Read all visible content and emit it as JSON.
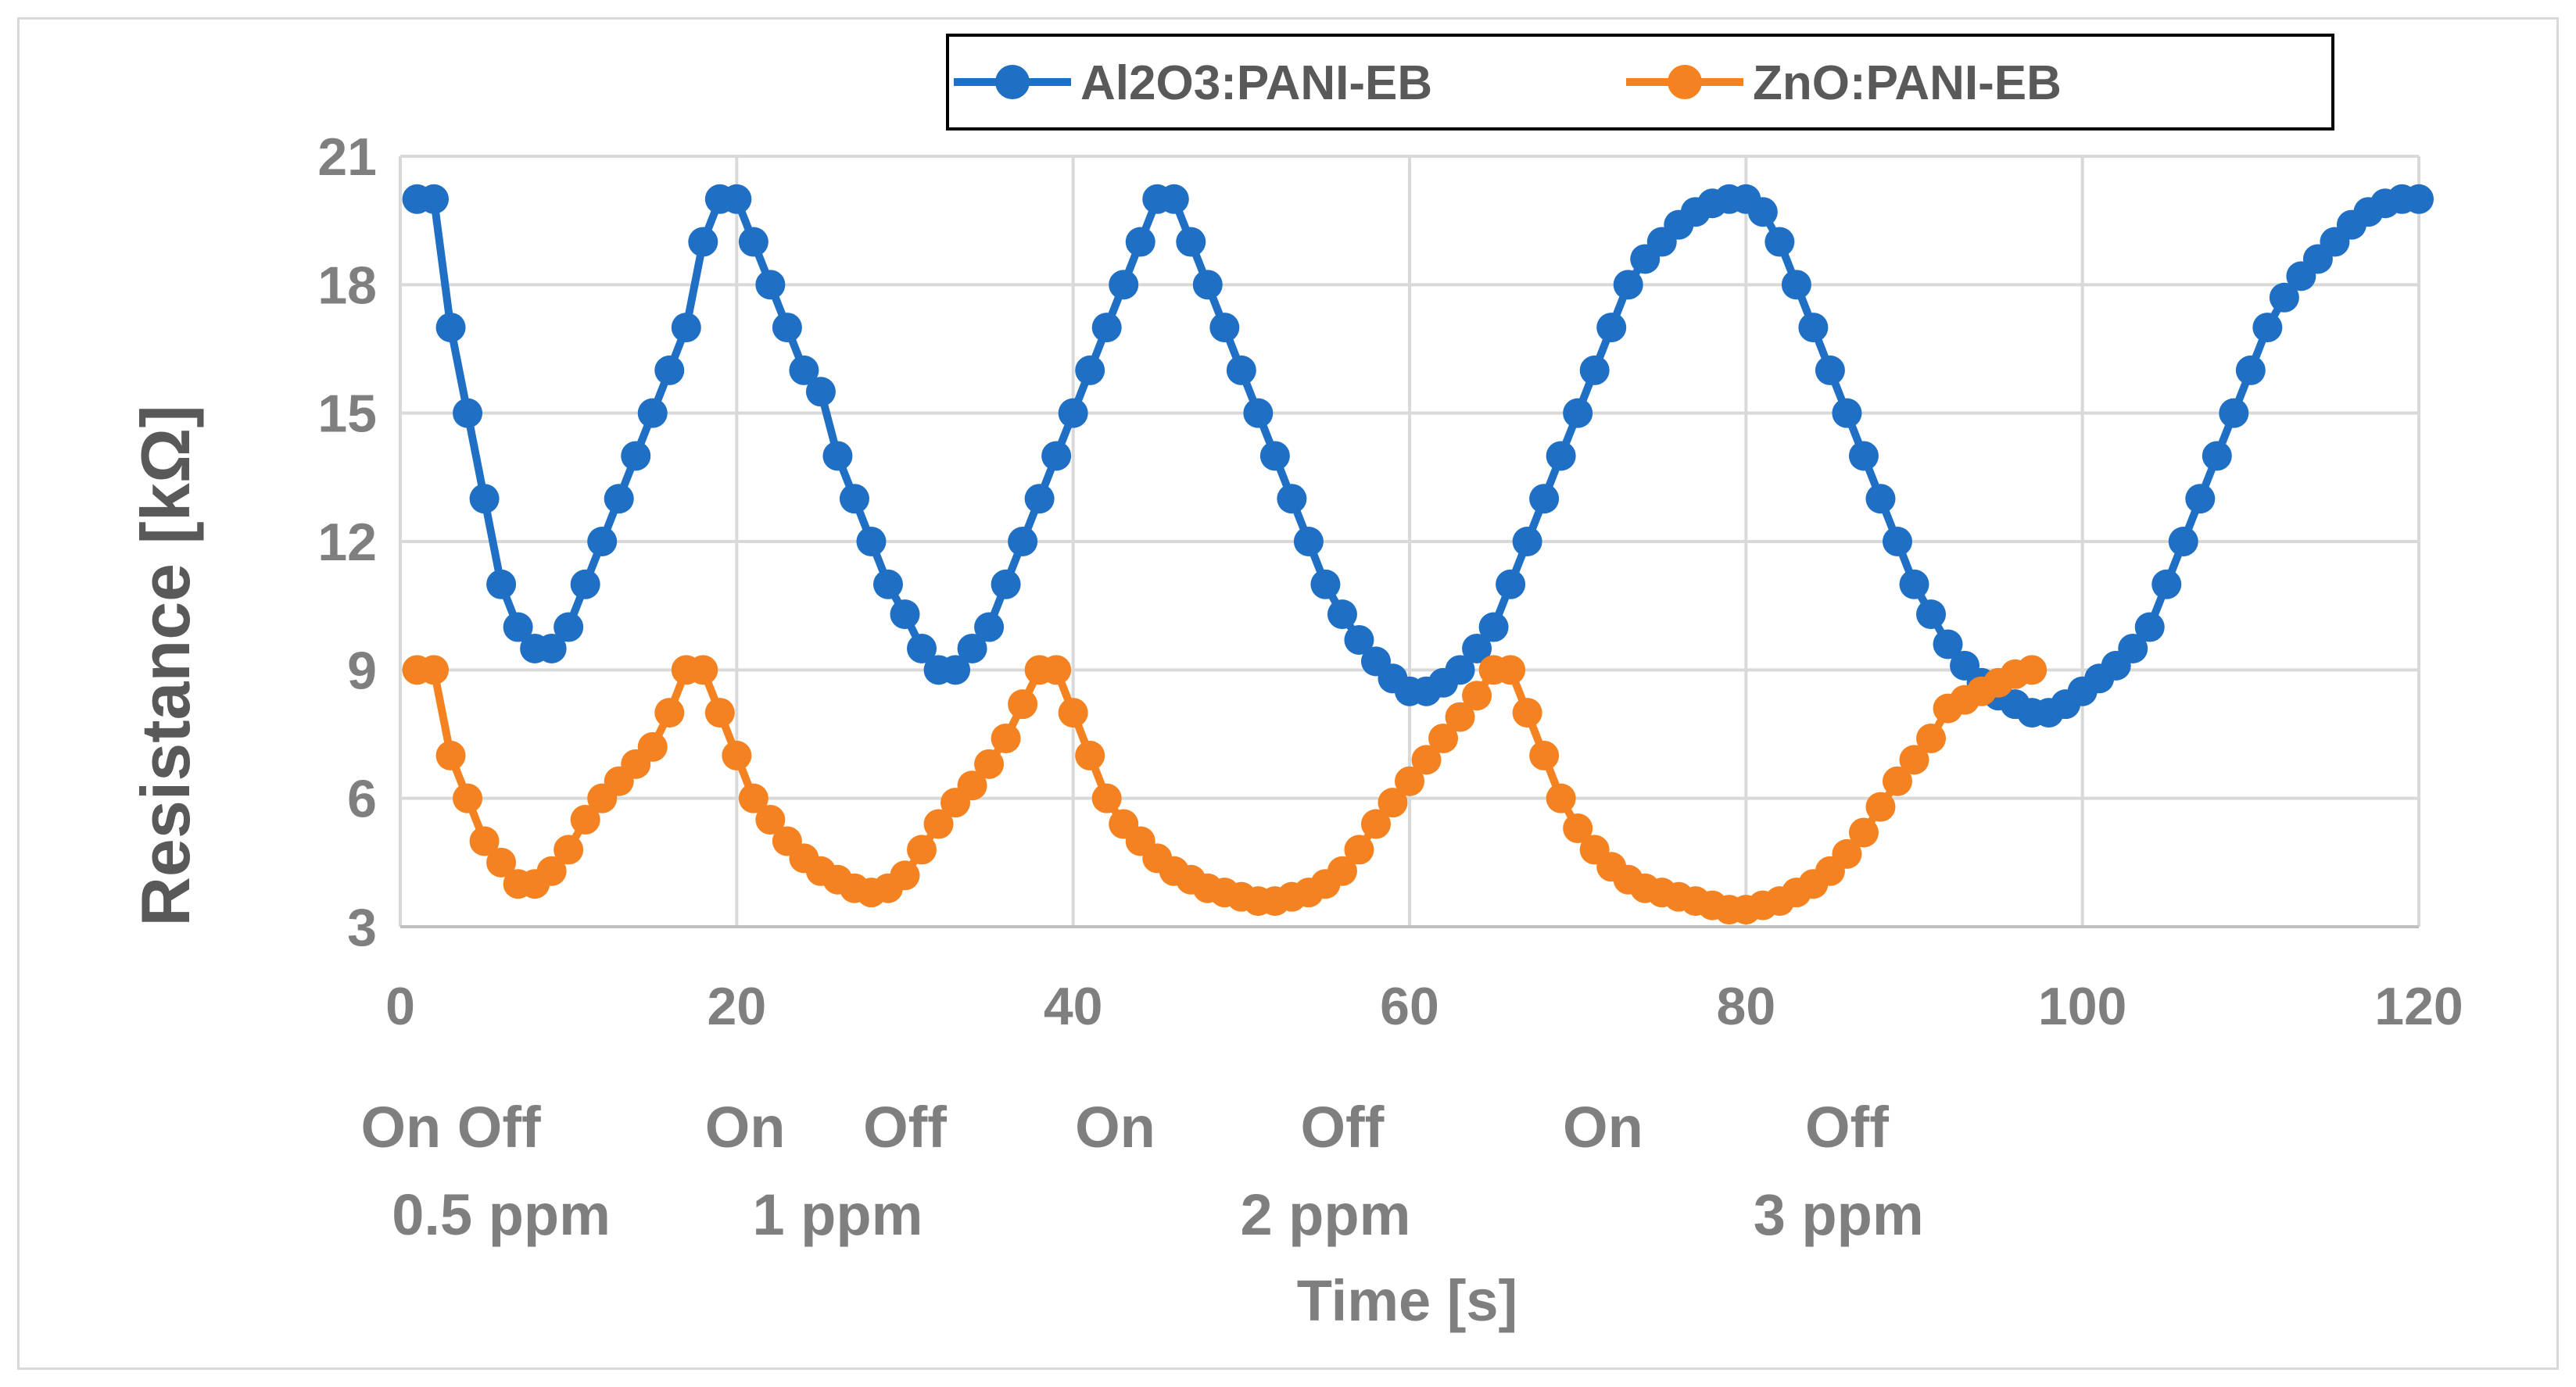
{
  "chart_data": {
    "type": "line",
    "title": "",
    "xlabel": "Time [s]",
    "ylabel": "Resistance [kΩ]",
    "xlim": [
      0,
      120
    ],
    "ylim": [
      3,
      21
    ],
    "xticks": [
      "0",
      "20",
      "40",
      "60",
      "80",
      "100",
      "120"
    ],
    "yticks": [
      "3",
      "6",
      "9",
      "12",
      "15",
      "18",
      "21"
    ],
    "grid": true,
    "legend_position": "top",
    "colors": {
      "Al2O3:PANI-EB": "#1f6fc5",
      "ZnO:PANI-EB": "#f58220"
    },
    "series": [
      {
        "name": "Al2O3:PANI-EB",
        "x": [
          1,
          2,
          3,
          4,
          5,
          6,
          7,
          8,
          9,
          10,
          11,
          12,
          13,
          14,
          15,
          16,
          17,
          18,
          19,
          20,
          21,
          22,
          23,
          24,
          25,
          26,
          27,
          28,
          29,
          30,
          31,
          32,
          33,
          34,
          35,
          36,
          37,
          38,
          39,
          40,
          41,
          42,
          43,
          44,
          45,
          46,
          47,
          48,
          49,
          50,
          51,
          52,
          53,
          54,
          55,
          56,
          57,
          58,
          59,
          60,
          61,
          62,
          63,
          64,
          65,
          66,
          67,
          68,
          69,
          70,
          71,
          72,
          73,
          74,
          75,
          76,
          77,
          78,
          79,
          80,
          81,
          82,
          83,
          84,
          85,
          86,
          87,
          88,
          89,
          90,
          91,
          92,
          93,
          94,
          95,
          96,
          97,
          98,
          99,
          100,
          101,
          102,
          103,
          104,
          105,
          106,
          107,
          108,
          109,
          110,
          111,
          112,
          113,
          114,
          115,
          116,
          117,
          118,
          119,
          120
        ],
        "values": [
          20,
          20,
          17,
          15,
          13,
          11,
          10,
          9.5,
          9.5,
          10,
          11,
          12,
          13,
          14,
          15,
          16,
          17,
          19,
          20,
          20,
          19,
          18,
          17,
          16,
          15.5,
          14,
          13,
          12,
          11,
          10.3,
          9.5,
          9,
          9,
          9.5,
          10,
          11,
          12,
          13,
          14,
          15,
          16,
          17,
          18,
          19,
          20,
          20,
          19,
          18,
          17,
          16,
          15,
          14,
          13,
          12,
          11,
          10.3,
          9.7,
          9.2,
          8.8,
          8.5,
          8.5,
          8.7,
          9,
          9.5,
          10,
          11,
          12,
          13,
          14,
          15,
          16,
          17,
          18,
          18.6,
          19,
          19.4,
          19.7,
          19.9,
          20,
          20,
          19.7,
          19,
          18,
          17,
          16,
          15,
          14,
          13,
          12,
          11,
          10.3,
          9.6,
          9.1,
          8.7,
          8.4,
          8.2,
          8,
          8,
          8.2,
          8.5,
          8.8,
          9.1,
          9.5,
          10,
          11,
          12,
          13,
          14,
          15,
          16,
          17,
          17.7,
          18.2,
          18.6,
          19,
          19.4,
          19.7,
          19.9,
          20,
          20
        ]
      },
      {
        "name": "ZnO:PANI-EB",
        "x": [
          1,
          2,
          3,
          4,
          5,
          6,
          7,
          8,
          9,
          10,
          11,
          12,
          13,
          14,
          15,
          16,
          17,
          18,
          19,
          20,
          21,
          22,
          23,
          24,
          25,
          26,
          27,
          28,
          29,
          30,
          31,
          32,
          33,
          34,
          35,
          36,
          37,
          38,
          39,
          40,
          41,
          42,
          43,
          44,
          45,
          46,
          47,
          48,
          49,
          50,
          51,
          52,
          53,
          54,
          55,
          56,
          57,
          58,
          59,
          60,
          61,
          62,
          63,
          64,
          65,
          66,
          67,
          68,
          69,
          70,
          71,
          72,
          73,
          74,
          75,
          76,
          77,
          78,
          79,
          80,
          81,
          82,
          83,
          84,
          85,
          86,
          87,
          88,
          89,
          90,
          91,
          92,
          93,
          94,
          95,
          96,
          97
        ],
        "values": [
          9,
          9,
          7,
          6,
          5,
          4.5,
          4,
          4,
          4.3,
          4.8,
          5.5,
          6,
          6.4,
          6.8,
          7.2,
          8,
          9,
          9,
          8,
          7,
          6,
          5.5,
          5,
          4.6,
          4.3,
          4.1,
          3.9,
          3.8,
          3.9,
          4.2,
          4.8,
          5.4,
          5.9,
          6.3,
          6.8,
          7.4,
          8.2,
          9,
          9,
          8,
          7,
          6,
          5.4,
          5,
          4.6,
          4.3,
          4.1,
          3.9,
          3.8,
          3.7,
          3.6,
          3.6,
          3.7,
          3.8,
          4,
          4.3,
          4.8,
          5.4,
          5.9,
          6.4,
          6.9,
          7.4,
          7.9,
          8.4,
          9,
          9,
          8,
          7,
          6,
          5.3,
          4.8,
          4.4,
          4.1,
          3.9,
          3.8,
          3.7,
          3.6,
          3.5,
          3.4,
          3.4,
          3.5,
          3.6,
          3.8,
          4,
          4.3,
          4.7,
          5.2,
          5.8,
          6.4,
          6.9,
          7.4,
          8.1,
          8.3,
          8.5,
          8.7,
          8.9,
          9
        ]
      }
    ],
    "annotations": {
      "row1": [
        {
          "text": "On Off",
          "x": 3
        },
        {
          "text": "On",
          "x": 20.5
        },
        {
          "text": "Off",
          "x": 30
        },
        {
          "text": "On",
          "x": 42.5
        },
        {
          "text": "Off",
          "x": 56
        },
        {
          "text": "On",
          "x": 71.5
        },
        {
          "text": "Off",
          "x": 86
        }
      ],
      "row2": [
        {
          "text": "0.5 ppm",
          "x": 6
        },
        {
          "text": "1 ppm",
          "x": 26
        },
        {
          "text": "2 ppm",
          "x": 55
        },
        {
          "text": "3 ppm",
          "x": 85.5
        }
      ]
    }
  }
}
